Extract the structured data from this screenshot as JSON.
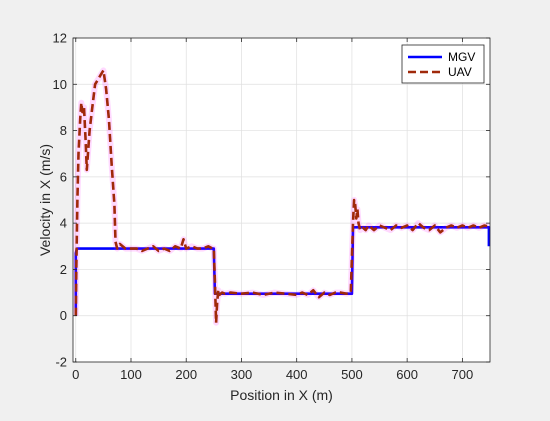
{
  "chart_data": {
    "type": "line",
    "title": "",
    "xlabel": "Position in X (m)",
    "ylabel": "Velocity in X (m/s)",
    "xlim": [
      -5,
      750
    ],
    "ylim": [
      -2,
      12
    ],
    "xticks": [
      0,
      100,
      200,
      300,
      400,
      500,
      600,
      700
    ],
    "yticks": [
      -2,
      0,
      2,
      4,
      6,
      8,
      10,
      12
    ],
    "grid": true,
    "legend_position": "top-right",
    "colors": {
      "mgv": "#0000ff",
      "uav": "#a0290a",
      "uav_halo": "#ff00ff",
      "axes_bg": "#ffffff",
      "grid": "#dfdfdf",
      "axis": "#262626"
    },
    "series": [
      {
        "name": "MGV",
        "style": "solid",
        "x": [
          0,
          0,
          2,
          50,
          100,
          150,
          200,
          250,
          252,
          300,
          350,
          400,
          450,
          500,
          502,
          550,
          600,
          650,
          700,
          748,
          748
        ],
        "y": [
          0,
          2.7,
          2.9,
          2.9,
          2.9,
          2.9,
          2.9,
          2.9,
          0.95,
          0.95,
          0.95,
          0.95,
          0.95,
          0.95,
          3.82,
          3.82,
          3.82,
          3.82,
          3.82,
          3.82,
          3.0
        ]
      },
      {
        "name": "UAV",
        "style": "dashed",
        "x": [
          0,
          1,
          3,
          5,
          8,
          10,
          12,
          15,
          18,
          20,
          25,
          30,
          35,
          40,
          45,
          50,
          55,
          60,
          65,
          70,
          72,
          75,
          80,
          90,
          100,
          110,
          120,
          130,
          140,
          150,
          160,
          170,
          180,
          190,
          195,
          200,
          210,
          220,
          230,
          240,
          248,
          250,
          252,
          254,
          256,
          258,
          260,
          265,
          270,
          280,
          300,
          320,
          340,
          360,
          380,
          400,
          410,
          420,
          430,
          440,
          450,
          460,
          470,
          480,
          490,
          498,
          500,
          502,
          504,
          506,
          508,
          510,
          512,
          515,
          520,
          525,
          530,
          540,
          550,
          560,
          570,
          580,
          590,
          600,
          610,
          620,
          630,
          640,
          650,
          660,
          670,
          680,
          690,
          700,
          710,
          720,
          730,
          740,
          748
        ],
        "y": [
          0,
          2.0,
          5.0,
          7.0,
          8.5,
          9.2,
          8.8,
          9.0,
          7.5,
          6.3,
          8.0,
          9.0,
          10.0,
          10.2,
          10.4,
          10.6,
          9.8,
          8.5,
          6.5,
          4.8,
          3.2,
          2.9,
          3.1,
          2.9,
          2.9,
          2.9,
          2.8,
          2.9,
          3.0,
          2.8,
          2.9,
          2.8,
          3.0,
          2.9,
          3.3,
          2.9,
          3.0,
          2.9,
          2.9,
          3.0,
          2.9,
          2.9,
          1.5,
          -0.3,
          0.6,
          1.1,
          0.9,
          1.0,
          0.95,
          1.0,
          0.95,
          1.0,
          0.9,
          1.0,
          0.95,
          0.9,
          1.0,
          0.9,
          1.1,
          0.8,
          1.0,
          0.9,
          1.0,
          1.0,
          0.95,
          1.0,
          2.5,
          4.0,
          5.0,
          4.8,
          4.2,
          4.6,
          4.0,
          3.7,
          3.8,
          3.7,
          3.9,
          3.7,
          3.9,
          3.8,
          3.7,
          3.9,
          3.8,
          3.9,
          3.7,
          4.0,
          3.8,
          3.7,
          3.9,
          3.6,
          3.8,
          3.9,
          3.8,
          3.9,
          3.8,
          3.9,
          3.8,
          3.9,
          3.85
        ]
      }
    ]
  }
}
